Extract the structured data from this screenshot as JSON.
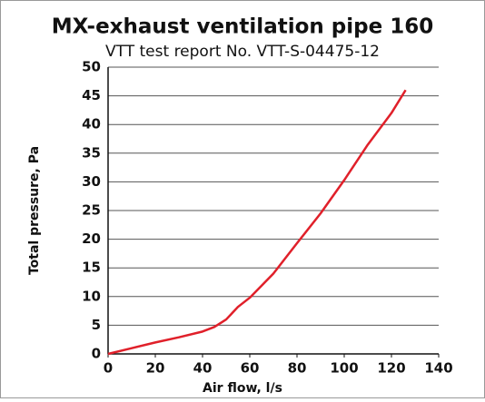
{
  "chart_data": {
    "type": "line",
    "title": "MX-exhaust ventilation pipe 160",
    "subtitle": "VTT test report No. VTT-S-04475-12",
    "x_label": "Air flow, l/s",
    "y_label": "Total pressure, Pa",
    "x": [
      0,
      10,
      20,
      30,
      40,
      45,
      50,
      55,
      60,
      70,
      80,
      90,
      100,
      110,
      120,
      126
    ],
    "series": [
      {
        "name": "MX-exhaust ventilation pipe 160",
        "color": "#e0202a",
        "values": [
          0,
          1,
          2,
          2.9,
          3.9,
          4.7,
          6,
          8.2,
          9.8,
          14,
          19.3,
          24.5,
          30.3,
          36.5,
          42,
          46
        ]
      }
    ],
    "xlim": [
      0,
      140
    ],
    "xticks": [
      0,
      20,
      40,
      60,
      80,
      100,
      120,
      140
    ],
    "ylim": [
      0,
      50
    ],
    "yticks": [
      0,
      5,
      10,
      15,
      20,
      25,
      30,
      35,
      40,
      45,
      50
    ],
    "grid": true
  }
}
